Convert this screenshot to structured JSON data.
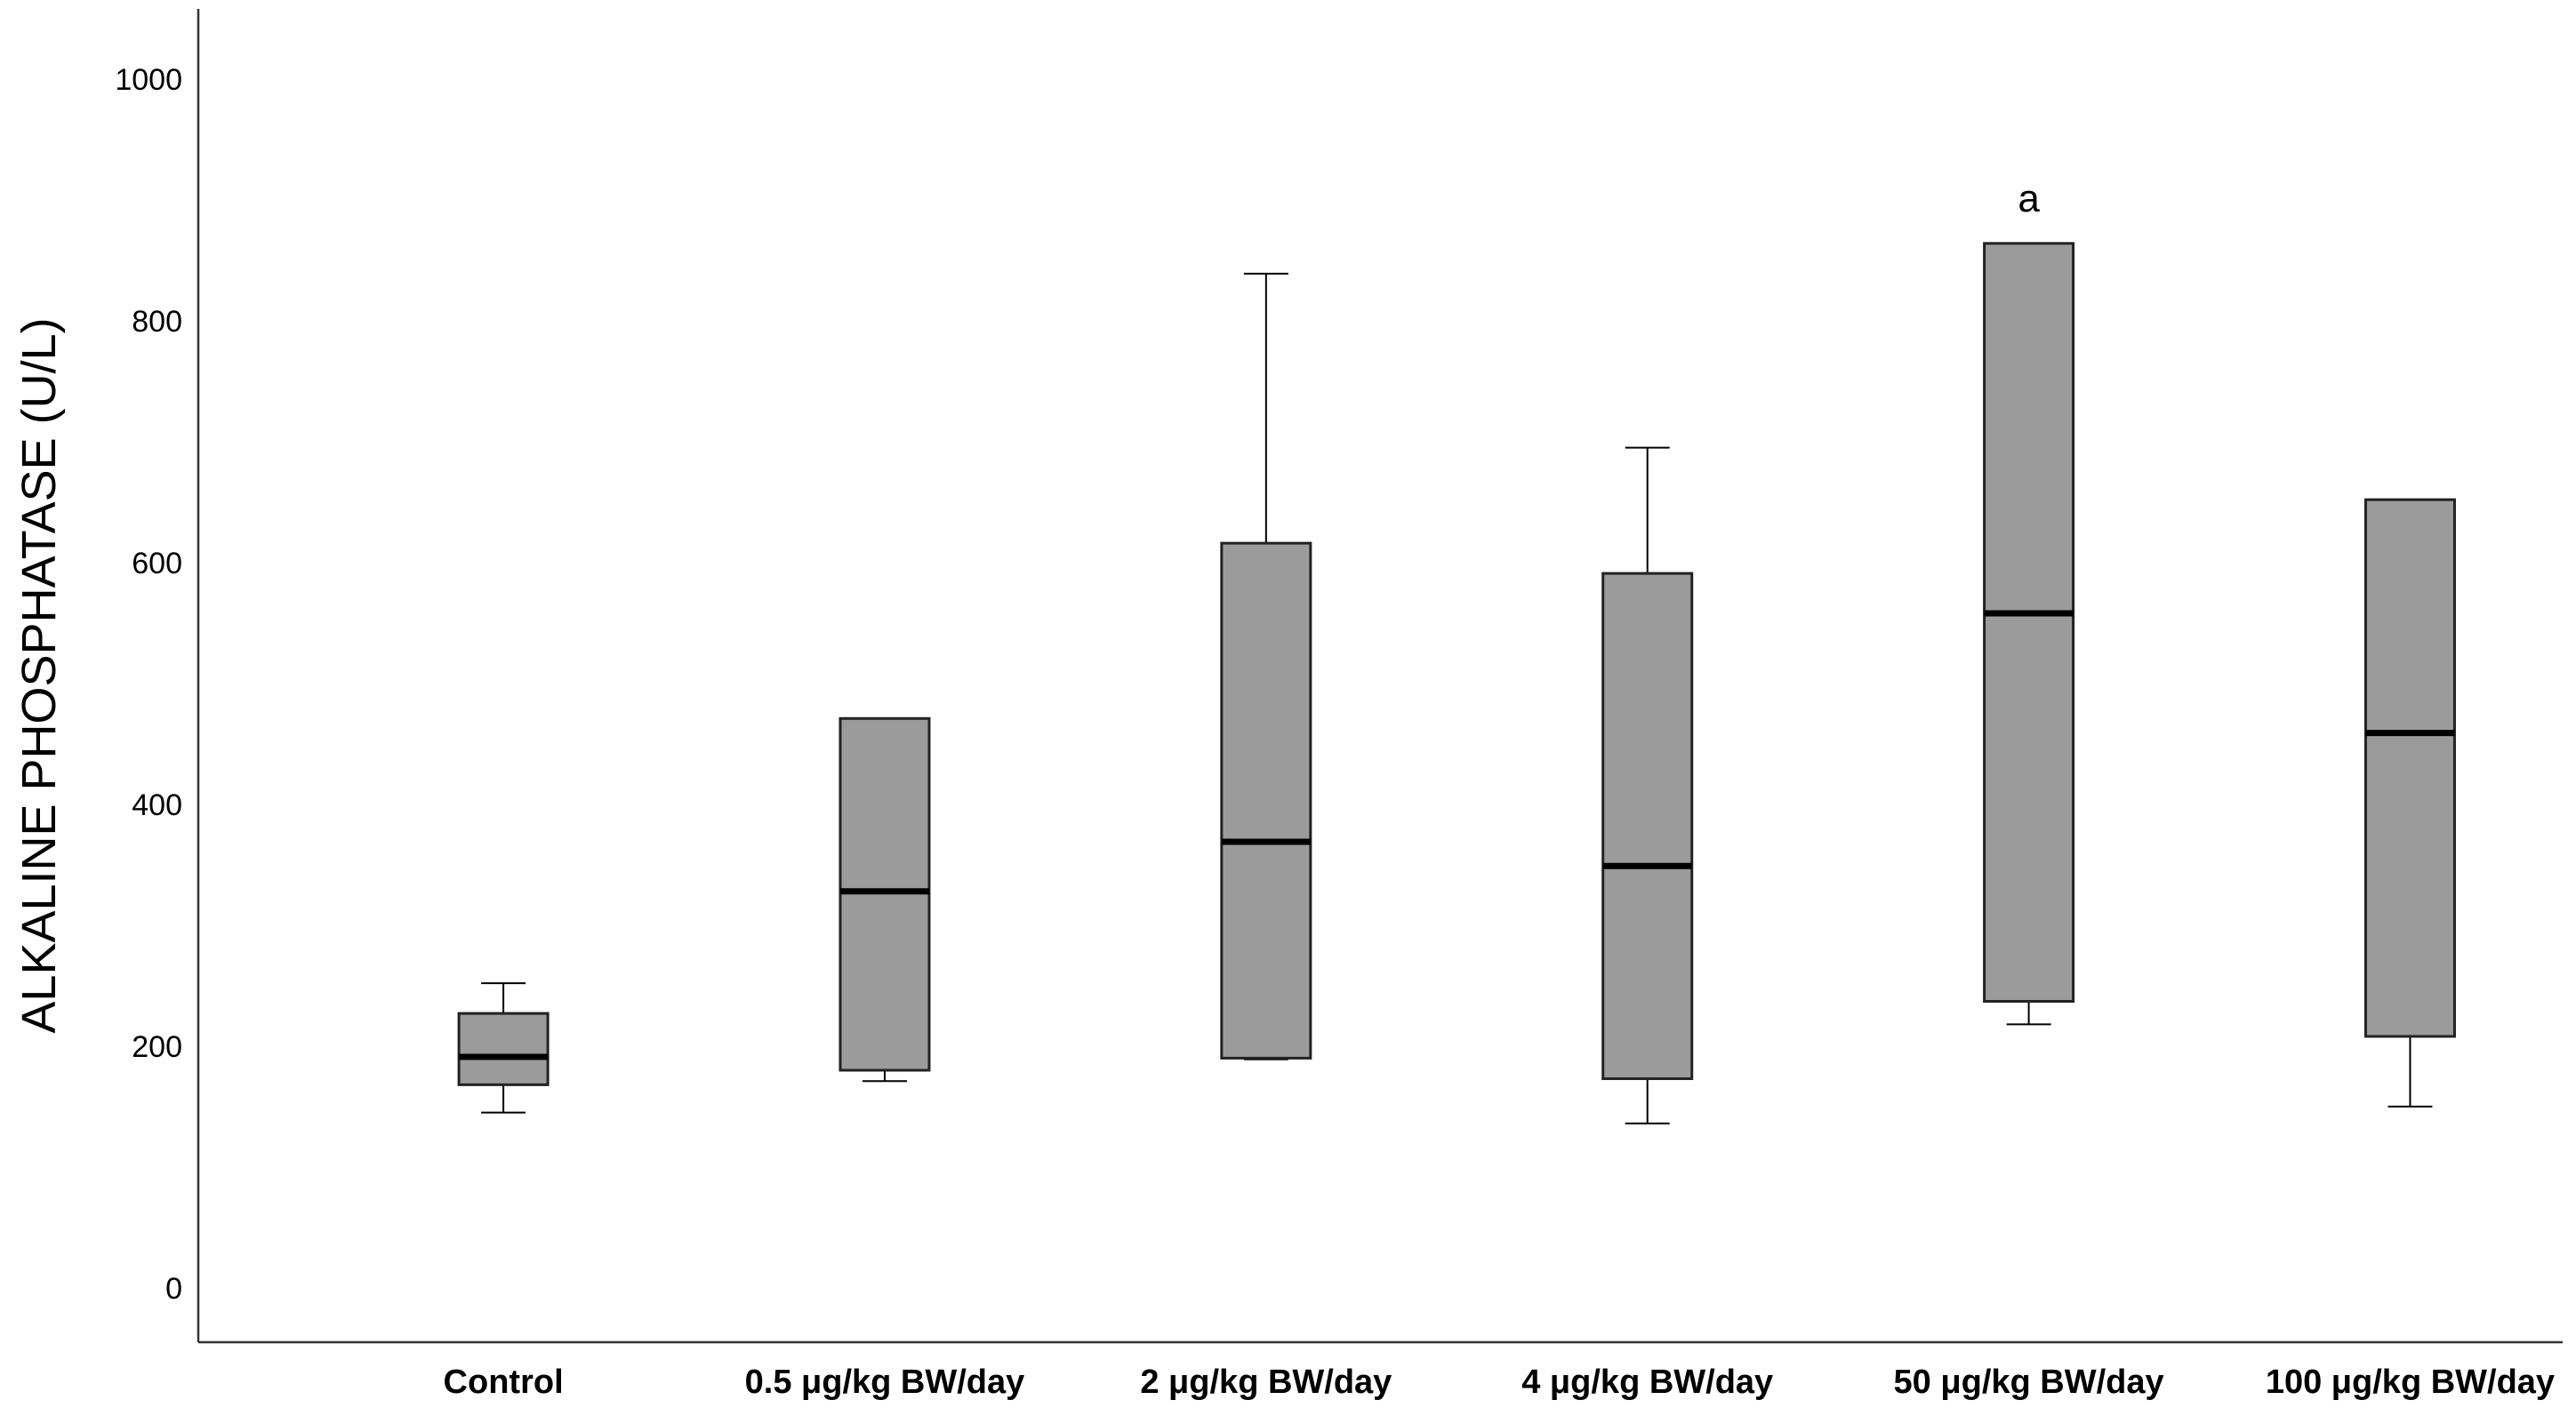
{
  "chart_data": {
    "type": "box",
    "ylabel": "ALKALINE PHOSPHATASE (U/L)",
    "xlabel": "",
    "ylim": [
      -45,
      1058
    ],
    "yticks": [
      0,
      200,
      400,
      600,
      800,
      1000
    ],
    "categories": [
      "Control",
      "0.5 μg/kg BW/day",
      "2 μg/kg BW/day",
      "4 μg/kg BW/day",
      "50 μg/kg BW/day",
      "100 μg/kg BW/day"
    ],
    "boxes": [
      {
        "whisker_low": 145,
        "q1": 168,
        "median": 191,
        "q3": 227,
        "whisker_high": 252
      },
      {
        "whisker_low": 171,
        "q1": 180,
        "median": 328,
        "q3": 471,
        "whisker_high": 471
      },
      {
        "whisker_low": 189,
        "q1": 190,
        "median": 369,
        "q3": 616,
        "whisker_high": 839
      },
      {
        "whisker_low": 136,
        "q1": 173,
        "median": 349,
        "q3": 591,
        "whisker_high": 695
      },
      {
        "whisker_low": 218,
        "q1": 237,
        "median": 558,
        "q3": 864,
        "whisker_high": 864
      },
      {
        "whisker_low": 150,
        "q1": 208,
        "median": 459,
        "q3": 652,
        "whisker_high": 652
      }
    ],
    "annotations": [
      {
        "category_index": 4,
        "text": "a"
      }
    ],
    "box_fill": "#9b9b9b",
    "grid": false,
    "legend": "none"
  }
}
